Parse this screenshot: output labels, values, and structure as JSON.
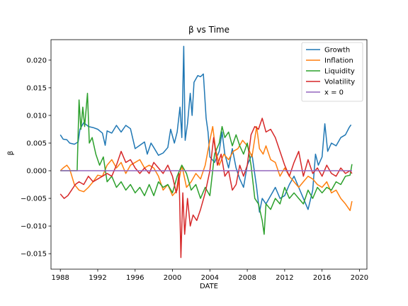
{
  "chart_data": {
    "type": "line",
    "title": "β vs Time",
    "xlabel": "DATE",
    "ylabel": "β",
    "xlim": [
      1987.0,
      2020.8
    ],
    "ylim": [
      -0.0178,
      0.0237
    ],
    "x_ticks": [
      1988,
      1992,
      1996,
      2000,
      2004,
      2008,
      2012,
      2016,
      2020
    ],
    "y_ticks": [
      -0.015,
      -0.01,
      -0.005,
      0.0,
      0.005,
      0.01,
      0.015,
      0.02
    ],
    "y_tick_labels": [
      "−0.015",
      "−0.010",
      "−0.005",
      "0.000",
      "0.005",
      "0.010",
      "0.015",
      "0.020"
    ],
    "grid": false,
    "legend_position": "top-right",
    "series": [
      {
        "name": "Growth",
        "color": "#1f77b4",
        "points": [
          [
            1988.0,
            0.0065
          ],
          [
            1988.3,
            0.0057
          ],
          [
            1988.7,
            0.0056
          ],
          [
            1989.0,
            0.005
          ],
          [
            1989.5,
            0.0048
          ],
          [
            1989.9,
            0.0052
          ],
          [
            1990.1,
            0.0075
          ],
          [
            1990.5,
            0.0087
          ],
          [
            1991.0,
            0.008
          ],
          [
            1991.5,
            0.0078
          ],
          [
            1992.0,
            0.0075
          ],
          [
            1992.5,
            0.0068
          ],
          [
            1992.8,
            0.0046
          ],
          [
            1993.0,
            0.0072
          ],
          [
            1993.5,
            0.0068
          ],
          [
            1994.0,
            0.0082
          ],
          [
            1994.5,
            0.007
          ],
          [
            1995.0,
            0.0082
          ],
          [
            1995.5,
            0.0076
          ],
          [
            1996.0,
            0.004
          ],
          [
            1996.5,
            0.0046
          ],
          [
            1997.0,
            0.0052
          ],
          [
            1997.3,
            0.003
          ],
          [
            1997.7,
            0.005
          ],
          [
            1998.0,
            0.0042
          ],
          [
            1998.5,
            0.0028
          ],
          [
            1999.0,
            0.0032
          ],
          [
            1999.5,
            0.0042
          ],
          [
            1999.8,
            0.0075
          ],
          [
            2000.2,
            0.005
          ],
          [
            2000.5,
            0.007
          ],
          [
            2000.8,
            0.0115
          ],
          [
            2001.0,
            0.006
          ],
          [
            2001.2,
            0.0225
          ],
          [
            2001.35,
            0.0055
          ],
          [
            2001.6,
            0.0085
          ],
          [
            2001.9,
            0.014
          ],
          [
            2002.1,
            0.01
          ],
          [
            2002.3,
            0.016
          ],
          [
            2002.7,
            0.0172
          ],
          [
            2003.0,
            0.017
          ],
          [
            2003.3,
            0.0175
          ],
          [
            2003.6,
            0.0095
          ],
          [
            2003.8,
            0.007
          ],
          [
            2004.0,
            0.0025
          ],
          [
            2004.5,
            0.0015
          ],
          [
            2005.0,
            0.0035
          ],
          [
            2005.3,
            0.007
          ],
          [
            2005.6,
            0.003
          ],
          [
            2006.0,
            0.0005
          ],
          [
            2006.4,
            0.004
          ],
          [
            2006.8,
            0.0005
          ],
          [
            2007.2,
            -0.0015
          ],
          [
            2007.6,
            -0.003
          ],
          [
            2008.0,
            0.001
          ],
          [
            2008.5,
            0.003
          ],
          [
            2009.0,
            -0.003
          ],
          [
            2009.3,
            -0.0075
          ],
          [
            2009.6,
            -0.005
          ],
          [
            2010.0,
            -0.006
          ],
          [
            2010.5,
            -0.0045
          ],
          [
            2011.0,
            -0.003
          ],
          [
            2011.5,
            -0.005
          ],
          [
            2012.0,
            -0.0045
          ],
          [
            2012.5,
            -0.0025
          ],
          [
            2013.0,
            -0.001
          ],
          [
            2013.5,
            -0.003
          ],
          [
            2014.0,
            -0.005
          ],
          [
            2014.5,
            -0.007
          ],
          [
            2015.0,
            -0.0035
          ],
          [
            2015.3,
            0.003
          ],
          [
            2015.6,
            0.001
          ],
          [
            2016.0,
            0.0025
          ],
          [
            2016.3,
            0.0085
          ],
          [
            2016.6,
            0.0035
          ],
          [
            2017.0,
            0.005
          ],
          [
            2017.5,
            0.0045
          ],
          [
            2018.0,
            0.006
          ],
          [
            2018.5,
            0.0065
          ],
          [
            2018.9,
            0.0078
          ],
          [
            2019.1,
            0.0083
          ]
        ]
      },
      {
        "name": "Inflation",
        "color": "#ff7f0e",
        "points": [
          [
            1988.0,
            0.0
          ],
          [
            1988.3,
            0.0005
          ],
          [
            1988.7,
            0.001
          ],
          [
            1989.0,
            0.0003
          ],
          [
            1989.5,
            -0.0025
          ],
          [
            1990.0,
            -0.0035
          ],
          [
            1990.5,
            -0.0038
          ],
          [
            1991.0,
            -0.003
          ],
          [
            1991.5,
            -0.002
          ],
          [
            1992.0,
            -0.0008
          ],
          [
            1992.5,
            -0.001
          ],
          [
            1993.0,
            0.001
          ],
          [
            1993.5,
            0.002
          ],
          [
            1994.0,
            0.0005
          ],
          [
            1994.5,
            0.0015
          ],
          [
            1995.0,
            -0.0005
          ],
          [
            1995.5,
            0.001
          ],
          [
            1996.0,
            0.0015
          ],
          [
            1996.5,
            0.002
          ],
          [
            1997.0,
            0.0005
          ],
          [
            1997.5,
            0.001
          ],
          [
            1998.0,
            0.0005
          ],
          [
            1998.5,
            -0.001
          ],
          [
            1999.0,
            -0.0035
          ],
          [
            1999.5,
            -0.0025
          ],
          [
            2000.0,
            -0.0045
          ],
          [
            2000.5,
            -0.0035
          ],
          [
            2001.0,
            0.001
          ],
          [
            2001.5,
            -0.003
          ],
          [
            2002.0,
            -0.002
          ],
          [
            2002.5,
            -0.0005
          ],
          [
            2003.0,
            -0.0015
          ],
          [
            2003.5,
            0.001
          ],
          [
            2004.0,
            0.0055
          ],
          [
            2004.3,
            0.008
          ],
          [
            2004.6,
            0.004
          ],
          [
            2005.0,
            0.001
          ],
          [
            2005.5,
            0.003
          ],
          [
            2006.0,
            0.002
          ],
          [
            2006.5,
            0.0035
          ],
          [
            2007.0,
            0.004
          ],
          [
            2007.5,
            0.0055
          ],
          [
            2008.0,
            0.0045
          ],
          [
            2008.5,
            0.0025
          ],
          [
            2009.0,
            0.008
          ],
          [
            2009.3,
            0.004
          ],
          [
            2009.7,
            0.003
          ],
          [
            2010.0,
            0.0045
          ],
          [
            2010.5,
            0.002
          ],
          [
            2011.0,
            0.0015
          ],
          [
            2011.5,
            -0.001
          ],
          [
            2012.0,
            0.0005
          ],
          [
            2012.5,
            -0.001
          ],
          [
            2013.0,
            -0.002
          ],
          [
            2013.5,
            -0.003
          ],
          [
            2014.0,
            -0.002
          ],
          [
            2014.5,
            -0.001
          ],
          [
            2015.0,
            -0.0015
          ],
          [
            2015.5,
            -0.0025
          ],
          [
            2016.0,
            -0.003
          ],
          [
            2016.5,
            -0.002
          ],
          [
            2017.0,
            -0.004
          ],
          [
            2017.5,
            -0.0035
          ],
          [
            2018.0,
            -0.005
          ],
          [
            2018.5,
            -0.006
          ],
          [
            2019.0,
            -0.0072
          ],
          [
            2019.2,
            -0.0055
          ]
        ]
      },
      {
        "name": "Liquidity",
        "color": "#2ca02c",
        "points": [
          [
            1988.0,
            0.0
          ],
          [
            1989.0,
            0.0
          ],
          [
            1989.8,
            0.0
          ],
          [
            1990.0,
            0.0128
          ],
          [
            1990.2,
            0.0075
          ],
          [
            1990.4,
            0.0115
          ],
          [
            1990.6,
            0.008
          ],
          [
            1990.9,
            0.014
          ],
          [
            1991.1,
            0.005
          ],
          [
            1991.4,
            0.006
          ],
          [
            1991.8,
            0.003
          ],
          [
            1992.2,
            0.001
          ],
          [
            1992.6,
            0.0025
          ],
          [
            1993.0,
            -0.002
          ],
          [
            1993.5,
            -0.001
          ],
          [
            1994.0,
            -0.003
          ],
          [
            1994.5,
            -0.002
          ],
          [
            1995.0,
            -0.0035
          ],
          [
            1995.5,
            -0.0025
          ],
          [
            1996.0,
            -0.004
          ],
          [
            1996.5,
            -0.003
          ],
          [
            1997.0,
            -0.0045
          ],
          [
            1997.5,
            -0.0025
          ],
          [
            1998.0,
            -0.0045
          ],
          [
            1998.5,
            -0.002
          ],
          [
            1999.0,
            -0.003
          ],
          [
            1999.5,
            -0.0025
          ],
          [
            2000.0,
            -0.004
          ],
          [
            2000.5,
            -0.001
          ],
          [
            2001.0,
            0.001
          ],
          [
            2001.5,
            -0.0005
          ],
          [
            2002.0,
            -0.0035
          ],
          [
            2002.5,
            -0.0025
          ],
          [
            2003.0,
            -0.005
          ],
          [
            2003.5,
            -0.003
          ],
          [
            2004.0,
            -0.0045
          ],
          [
            2004.5,
            0.003
          ],
          [
            2005.0,
            0.005
          ],
          [
            2005.3,
            0.008
          ],
          [
            2005.6,
            0.006
          ],
          [
            2006.0,
            0.007
          ],
          [
            2006.4,
            0.0045
          ],
          [
            2006.8,
            0.0065
          ],
          [
            2007.2,
            0.0045
          ],
          [
            2007.6,
            0.003
          ],
          [
            2008.0,
            0.005
          ],
          [
            2008.4,
            0.001
          ],
          [
            2008.8,
            -0.005
          ],
          [
            2009.2,
            -0.006
          ],
          [
            2009.6,
            -0.009
          ],
          [
            2009.8,
            -0.0115
          ],
          [
            2010.0,
            -0.006
          ],
          [
            2010.5,
            -0.007
          ],
          [
            2011.0,
            -0.005
          ],
          [
            2011.5,
            -0.006
          ],
          [
            2012.0,
            -0.003
          ],
          [
            2012.5,
            -0.005
          ],
          [
            2013.0,
            -0.004
          ],
          [
            2013.5,
            -0.005
          ],
          [
            2014.0,
            -0.006
          ],
          [
            2014.5,
            -0.0035
          ],
          [
            2015.0,
            -0.005
          ],
          [
            2015.5,
            -0.003
          ],
          [
            2016.0,
            -0.004
          ],
          [
            2016.5,
            -0.003
          ],
          [
            2017.0,
            -0.0035
          ],
          [
            2017.5,
            -0.002
          ],
          [
            2018.0,
            -0.0025
          ],
          [
            2018.5,
            -0.001
          ],
          [
            2019.0,
            -0.0008
          ],
          [
            2019.2,
            0.0012
          ]
        ]
      },
      {
        "name": "Volatility",
        "color": "#d62728",
        "points": [
          [
            1988.0,
            -0.0042
          ],
          [
            1988.4,
            -0.005
          ],
          [
            1988.8,
            -0.0045
          ],
          [
            1989.2,
            -0.0035
          ],
          [
            1989.6,
            -0.0025
          ],
          [
            1990.0,
            -0.002
          ],
          [
            1990.5,
            -0.0025
          ],
          [
            1991.0,
            -0.001
          ],
          [
            1991.5,
            -0.002
          ],
          [
            1992.0,
            -0.0015
          ],
          [
            1992.5,
            -0.001
          ],
          [
            1993.0,
            -0.0005
          ],
          [
            1993.5,
            -0.001
          ],
          [
            1994.0,
            0.001
          ],
          [
            1994.5,
            0.0035
          ],
          [
            1995.0,
            0.0015
          ],
          [
            1995.5,
            0.002
          ],
          [
            1996.0,
            0.0005
          ],
          [
            1996.5,
            -0.0005
          ],
          [
            1997.0,
            0.0005
          ],
          [
            1997.5,
            -0.0005
          ],
          [
            1998.0,
            0.0015
          ],
          [
            1998.5,
            0.0005
          ],
          [
            1999.0,
            -0.0005
          ],
          [
            1999.5,
            0.001
          ],
          [
            2000.0,
            -0.001
          ],
          [
            2000.4,
            -0.004
          ],
          [
            2000.7,
            -0.0005
          ],
          [
            2000.9,
            -0.0157
          ],
          [
            2001.1,
            -0.004
          ],
          [
            2001.3,
            -0.0115
          ],
          [
            2001.6,
            -0.005
          ],
          [
            2001.9,
            -0.01
          ],
          [
            2002.2,
            -0.008
          ],
          [
            2002.6,
            -0.009
          ],
          [
            2003.0,
            -0.007
          ],
          [
            2003.5,
            -0.004
          ],
          [
            2004.0,
            0.0
          ],
          [
            2004.4,
            0.006
          ],
          [
            2004.8,
            0.001
          ],
          [
            2005.2,
            0.003
          ],
          [
            2005.6,
            -0.001
          ],
          [
            2006.0,
            0.0
          ],
          [
            2006.4,
            -0.0035
          ],
          [
            2006.8,
            -0.0025
          ],
          [
            2007.2,
            0.001
          ],
          [
            2007.6,
            -0.001
          ],
          [
            2008.0,
            0.001
          ],
          [
            2008.4,
            0.0065
          ],
          [
            2008.8,
            0.008
          ],
          [
            2009.2,
            0.0075
          ],
          [
            2009.6,
            0.0095
          ],
          [
            2010.0,
            0.007
          ],
          [
            2010.5,
            0.0075
          ],
          [
            2011.0,
            0.006
          ],
          [
            2011.5,
            0.0035
          ],
          [
            2012.0,
            0.001
          ],
          [
            2012.5,
            -0.001
          ],
          [
            2013.0,
            0.0015
          ],
          [
            2013.5,
            0.0035
          ],
          [
            2014.0,
            -0.001
          ],
          [
            2014.5,
            0.002
          ],
          [
            2015.0,
            -0.0005
          ],
          [
            2015.5,
            0.0005
          ],
          [
            2016.0,
            -0.001
          ],
          [
            2016.5,
            0.001
          ],
          [
            2017.0,
            -0.0005
          ],
          [
            2017.5,
            -0.001
          ],
          [
            2018.0,
            0.0005
          ],
          [
            2018.5,
            -0.0005
          ],
          [
            2019.0,
            0.0
          ],
          [
            2019.2,
            -0.0005
          ]
        ]
      },
      {
        "name": "x = 0",
        "color": "#9467bd",
        "points": [
          [
            1988.0,
            0.0
          ],
          [
            2019.2,
            0.0
          ]
        ]
      }
    ]
  }
}
